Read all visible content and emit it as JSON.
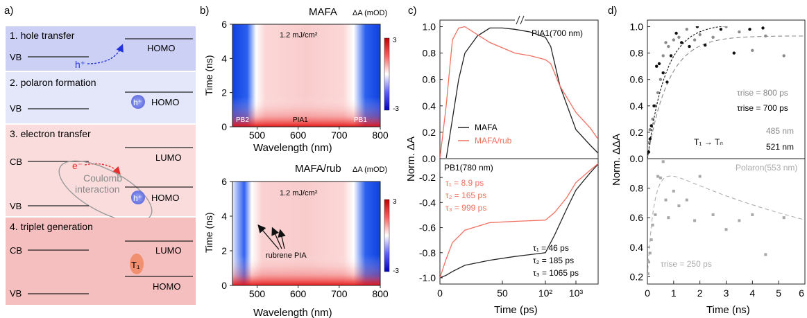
{
  "panel_a": {
    "label": "a)",
    "steps": [
      {
        "title": "1. hole transfer",
        "band_left": "VB",
        "band_right": "HOMO",
        "carrier": "h⁺"
      },
      {
        "title": "2. polaron formation",
        "band_left": "VB",
        "band_right": "HOMO",
        "carrier": "h⁺"
      },
      {
        "title": "3. electron transfer",
        "band_cb": "CB",
        "band_vb": "VB",
        "band_lumo": "LUMO",
        "band_homo": "HOMO",
        "electron": "e⁻",
        "carrier": "h⁺",
        "coulomb_1": "Coulomb",
        "coulomb_2": "interaction"
      },
      {
        "title": "4. triplet generation",
        "band_cb": "CB",
        "band_vb": "VB",
        "band_lumo": "LUMO",
        "band_homo": "HOMO",
        "state": "T₁"
      }
    ],
    "colors": {
      "step1": "#ccd0f5",
      "step2": "#e4e6fa",
      "step3": "#fbdcdc",
      "step4": "#f6bfbf",
      "arrow_blue": "#2233dd",
      "arrow_red": "#e63030"
    }
  },
  "panel_b": {
    "label": "b)",
    "maps": [
      {
        "title": "MAFA",
        "fluence": "1.2 mJ/cm²",
        "cbar_label": "ΔA (mOD)",
        "cbar_max": "3",
        "cbar_min": "-3",
        "annotations": [
          "PB2",
          "PIA1",
          "PB1"
        ]
      },
      {
        "title": "MAFA/rub",
        "fluence": "1.2 mJ/cm²",
        "cbar_label": "ΔA (mOD)",
        "cbar_max": "3",
        "cbar_min": "-3",
        "annotation": "rubrene PIA"
      }
    ],
    "ylabel": "Time (ns)",
    "xlabel": "Wavelength (nm)",
    "xticks": [
      "500",
      "600",
      "700",
      "800"
    ],
    "yticks": [
      "0",
      "2",
      "4",
      "6"
    ]
  },
  "panel_c": {
    "label": "c)",
    "ylabel": "Norm. ΔA",
    "xlabel": "Time (ps)",
    "top_title": "PIA1(700 nm)",
    "bottom_title": "PB1(780 nm)",
    "legend": [
      "MAFA",
      "MAFA/rub"
    ],
    "tau_red": [
      "τ₁ = 8.9 ps",
      "τ₂ = 165 ps",
      "τ₃ = 999 ps"
    ],
    "tau_black": [
      "τ₁ = 46 ps",
      "τ₂ = 185 ps",
      "τ₃ = 1065 ps"
    ],
    "top_yticks": [
      "0.0",
      "0.2",
      "0.4",
      "0.6",
      "0.8",
      "1.0"
    ],
    "bottom_yticks": [
      "-0.2",
      "-0.4",
      "-0.6",
      "-0.8",
      "-1.0"
    ],
    "xticks": [
      "0",
      "50",
      "10²",
      "10³"
    ],
    "colors": {
      "mafa": "#222222",
      "rub": "#f07060"
    }
  },
  "panel_d": {
    "label": "d)",
    "ylabel": "Norm. ΔΔA",
    "xlabel": "Time (ns)",
    "tau_gray": "τrise = 800 ps",
    "tau_black": "τrise = 700 ps",
    "transition": "T₁ → Tₙ",
    "wl_gray": "485 nm",
    "wl_black": "521 nm",
    "polaron_title": "Polaron(553 nm)",
    "tau_polaron": "τrise = 250 ps",
    "top_yticks": [
      "0.0",
      "0.2",
      "0.4",
      "0.6",
      "0.8",
      "1.0"
    ],
    "bottom_yticks": [
      "0.2",
      "0.4",
      "0.6",
      "0.8"
    ],
    "xticks": [
      "0",
      "1",
      "2",
      "3",
      "4",
      "5",
      "6"
    ]
  },
  "chart_data": [
    {
      "type": "heatmap",
      "title": "MAFA",
      "xlabel": "Wavelength (nm)",
      "ylabel": "Time (ns)",
      "xlim": [
        440,
        800
      ],
      "ylim": [
        0,
        6
      ],
      "zlim": [
        -3,
        3
      ],
      "features": [
        {
          "name": "PB2",
          "x": 470,
          "sign": "negative"
        },
        {
          "name": "PIA1",
          "x": 600,
          "sign": "positive"
        },
        {
          "name": "PB1",
          "x": 780,
          "sign": "negative"
        }
      ]
    },
    {
      "type": "heatmap",
      "title": "MAFA/rub",
      "xlabel": "Wavelength (nm)",
      "ylabel": "Time (ns)",
      "xlim": [
        440,
        800
      ],
      "ylim": [
        0,
        6
      ],
      "zlim": [
        -3,
        3
      ],
      "features": [
        {
          "name": "rubrene PIA",
          "x_range": [
            470,
            520
          ],
          "sign": "positive"
        }
      ]
    },
    {
      "type": "line",
      "title": "PIA1(700 nm)",
      "xlabel": "Time (ps)",
      "ylabel": "Norm. ΔA",
      "ylim": [
        0,
        1.05
      ],
      "series": [
        {
          "name": "MAFA",
          "x": [
            0,
            5,
            10,
            15,
            20,
            30,
            40,
            50,
            60,
            80,
            100,
            150,
            300,
            1000,
            3000,
            6000
          ],
          "y": [
            0.0,
            0.0,
            0.3,
            0.6,
            0.8,
            0.93,
            0.99,
            0.99,
            0.98,
            0.96,
            0.92,
            0.85,
            0.55,
            0.22,
            0.1,
            0.03
          ]
        },
        {
          "name": "MAFA/rub",
          "x": [
            0,
            5,
            10,
            15,
            20,
            30,
            40,
            50,
            60,
            80,
            100,
            150,
            300,
            1000,
            3000,
            6000
          ],
          "y": [
            0.0,
            0.4,
            0.9,
            0.99,
            1.0,
            0.94,
            0.88,
            0.84,
            0.8,
            0.78,
            0.75,
            0.72,
            0.55,
            0.35,
            0.23,
            0.13
          ]
        }
      ]
    },
    {
      "type": "line",
      "title": "PB1(780 nm)",
      "xlabel": "Time (ps)",
      "ylabel": "Norm. ΔA",
      "ylim": [
        -1.05,
        -0.05
      ],
      "series": [
        {
          "name": "MAFA",
          "x": [
            0,
            5,
            10,
            20,
            40,
            60,
            100,
            200,
            500,
            1000,
            3000,
            6000
          ],
          "y": [
            -1.0,
            -0.98,
            -0.95,
            -0.9,
            -0.86,
            -0.83,
            -0.8,
            -0.66,
            -0.45,
            -0.3,
            -0.16,
            -0.08
          ]
        },
        {
          "name": "MAFA/rub",
          "x": [
            0,
            5,
            10,
            20,
            40,
            60,
            100,
            200,
            500,
            1000,
            3000,
            6000
          ],
          "y": [
            -1.0,
            -0.85,
            -0.72,
            -0.62,
            -0.56,
            -0.55,
            -0.54,
            -0.48,
            -0.36,
            -0.24,
            -0.14,
            -0.08
          ]
        }
      ]
    },
    {
      "type": "scatter",
      "title": "T1→Tn",
      "xlabel": "Time (ns)",
      "ylabel": "Norm. ΔΔA",
      "xlim": [
        0,
        6
      ],
      "ylim": [
        0,
        1.05
      ],
      "series": [
        {
          "name": "485 nm",
          "tau_rise_ps": 800,
          "plateau": 0.93,
          "x": [
            0.05,
            0.1,
            0.2,
            0.3,
            0.4,
            0.5,
            0.6,
            0.7,
            0.8,
            1.0,
            1.2,
            1.5,
            1.8,
            2.0,
            2.5,
            3.0,
            3.5,
            4.0,
            4.5,
            5.2
          ],
          "y": [
            0.12,
            0.22,
            0.3,
            0.4,
            0.5,
            0.6,
            0.78,
            0.88,
            0.85,
            0.9,
            0.92,
            0.98,
            0.9,
            0.94,
            0.92,
            1.0,
            0.96,
            0.82,
            0.93,
            0.78
          ]
        },
        {
          "name": "521 nm",
          "tau_rise_ps": 700,
          "plateau": 1.02,
          "x": [
            0.05,
            0.1,
            0.15,
            0.25,
            0.35,
            0.45,
            0.6,
            0.75,
            0.9,
            1.1,
            1.3,
            1.6,
            1.9,
            2.2,
            2.8,
            3.3,
            3.9,
            4.4
          ],
          "y": [
            0.05,
            0.15,
            0.25,
            0.4,
            0.7,
            0.72,
            0.65,
            0.58,
            0.78,
            0.95,
            0.88,
            0.85,
            1.0,
            0.86,
            0.98,
            0.8,
            0.98,
            0.99
          ]
        }
      ]
    },
    {
      "type": "scatter",
      "title": "Polaron(553 nm)",
      "xlabel": "Time (ns)",
      "ylabel": "Norm. ΔΔA",
      "xlim": [
        0,
        6
      ],
      "ylim": [
        0.15,
        1.0
      ],
      "series": [
        {
          "name": "Polaron(553 nm)",
          "tau_rise_ps": 250,
          "x": [
            0.02,
            0.05,
            0.1,
            0.15,
            0.2,
            0.3,
            0.4,
            0.5,
            0.6,
            0.7,
            0.8,
            1.0,
            1.2,
            1.5,
            1.8,
            2.0,
            2.5,
            3.0,
            3.5,
            4.0,
            4.5,
            5.2
          ],
          "y": [
            0.22,
            0.3,
            0.36,
            0.45,
            0.55,
            0.62,
            0.88,
            0.87,
            0.98,
            0.72,
            0.6,
            0.78,
            0.68,
            0.72,
            0.58,
            0.88,
            0.62,
            0.52,
            0.58,
            0.62,
            0.35,
            0.6
          ]
        }
      ]
    }
  ]
}
